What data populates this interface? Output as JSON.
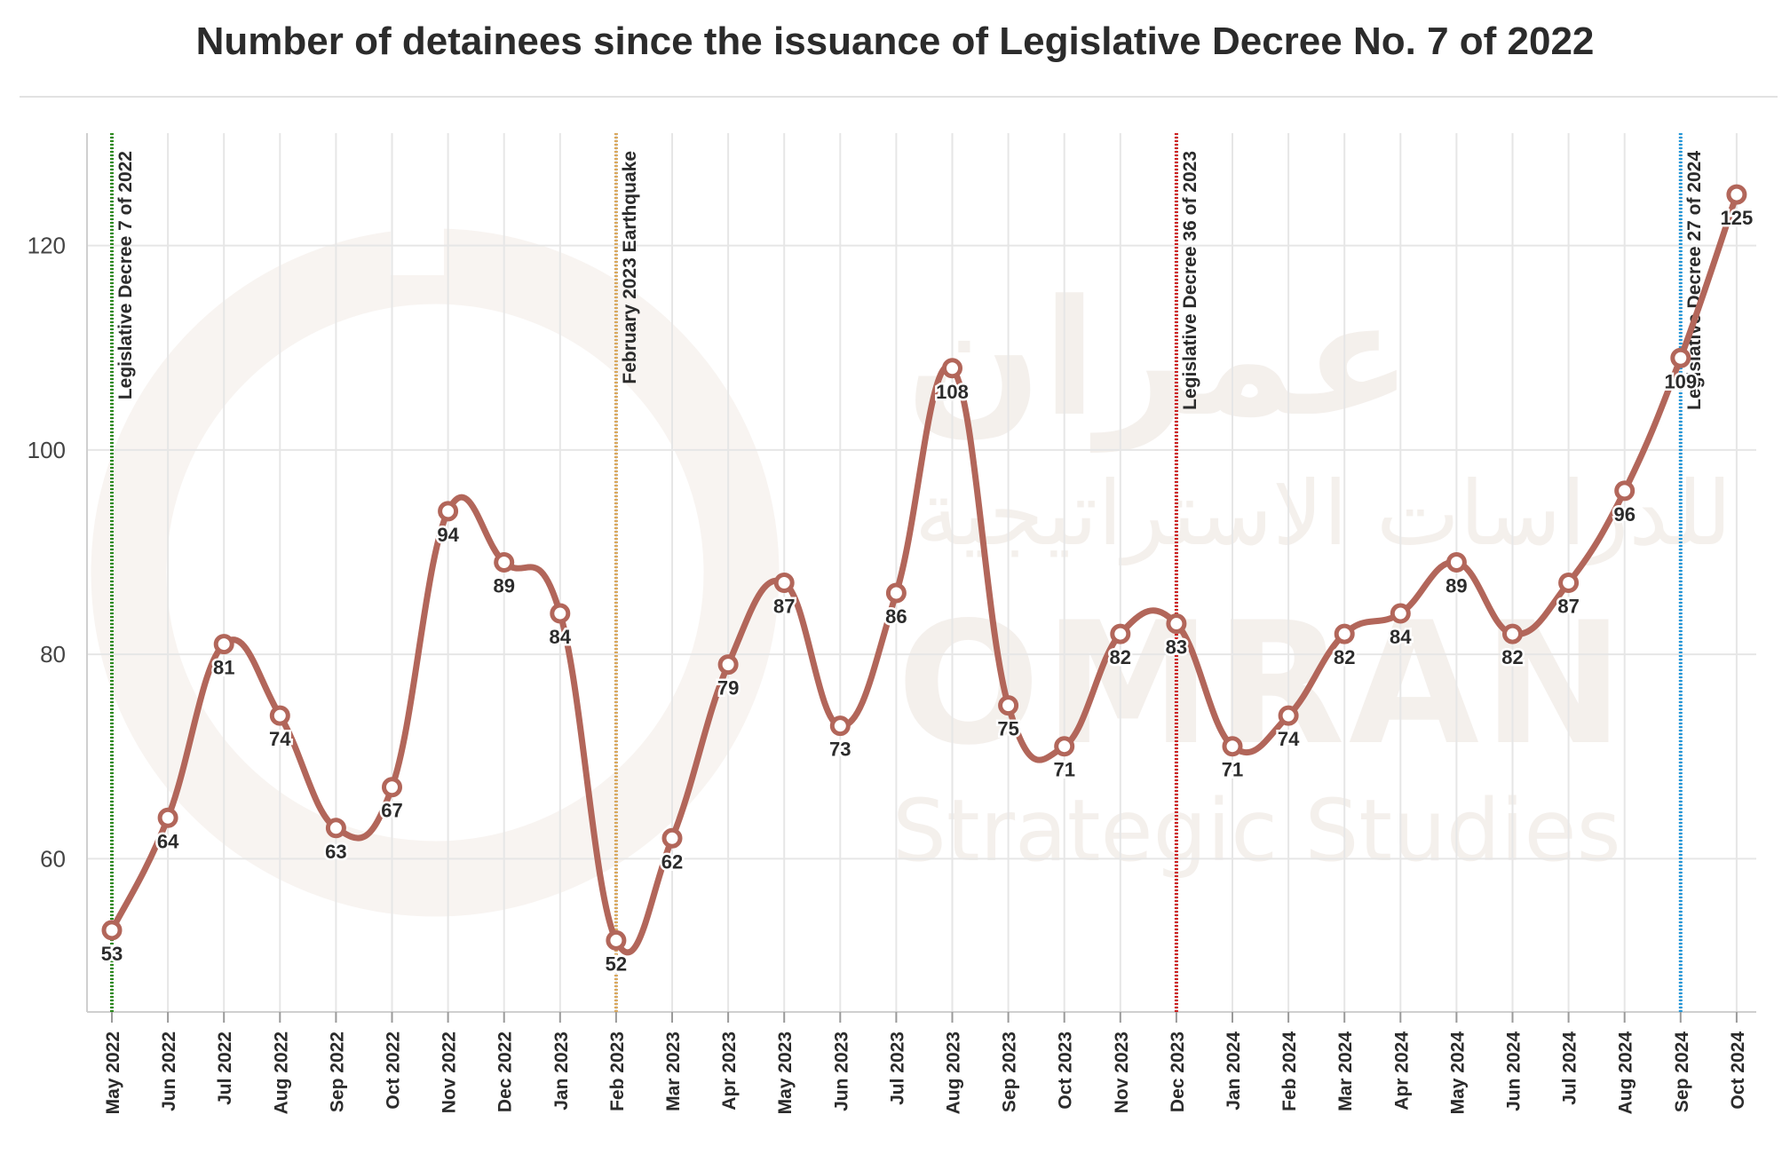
{
  "title": "Number of detainees since the issuance of Legislative Decree No. 7 of 2022",
  "watermark": {
    "brand": "OMRAN",
    "subtitle": "Strategic Studies",
    "arabic_top": "عمران",
    "arabic_bottom": "للدراسات الاستراتيجية"
  },
  "chart_data": {
    "type": "line",
    "title": "Number of detainees since the issuance of Legislative Decree No. 7 of 2022",
    "xlabel": "",
    "ylabel": "",
    "ylim": [
      45,
      131
    ],
    "yticks": [
      60,
      80,
      100,
      120
    ],
    "grid": true,
    "line_color": "#b2665a",
    "categories": [
      "May 2022",
      "Jun 2022",
      "Jul 2022",
      "Aug 2022",
      "Sep 2022",
      "Oct 2022",
      "Nov 2022",
      "Dec 2022",
      "Jan 2023",
      "Feb 2023",
      "Mar 2023",
      "Apr 2023",
      "May 2023",
      "Jun 2023",
      "Jul 2023",
      "Aug 2023",
      "Sep 2023",
      "Oct 2023",
      "Nov 2023",
      "Dec 2023",
      "Jan 2024",
      "Feb 2024",
      "Mar 2024",
      "Apr 2024",
      "May 2024",
      "Jun 2024",
      "Jul 2024",
      "Aug 2024",
      "Sep 2024",
      "Oct 2024"
    ],
    "values": [
      53,
      64,
      81,
      74,
      63,
      67,
      94,
      89,
      84,
      52,
      62,
      79,
      87,
      73,
      86,
      108,
      75,
      71,
      82,
      83,
      71,
      74,
      82,
      84,
      89,
      82,
      87,
      96,
      109,
      125
    ],
    "annotations": [
      {
        "at": "May 2022",
        "label": "Legislative Decree 7 of 2022",
        "color": "#2e8b1e"
      },
      {
        "at": "Feb 2023",
        "label": "February 2023 Earthquake",
        "color": "#d9a85e"
      },
      {
        "at": "Dec 2023",
        "label": "Legislative Decree 36 of 2023",
        "color": "#cc1f1f"
      },
      {
        "at": "Sep 2024",
        "label": "Legislative Decree 27 of 2024",
        "color": "#2196d9"
      }
    ]
  }
}
